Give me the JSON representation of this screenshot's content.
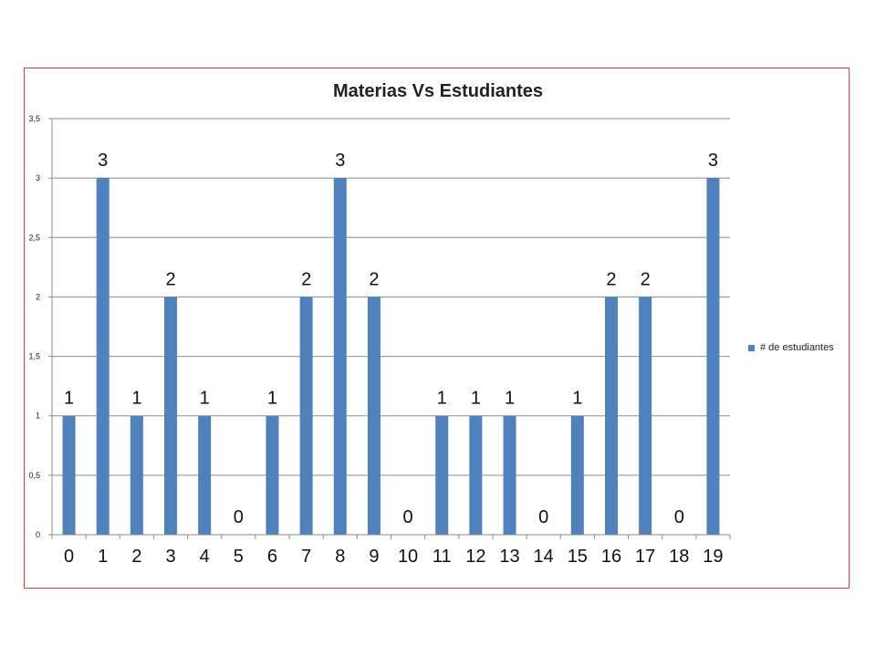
{
  "chart_data": {
    "type": "bar",
    "title": "Materias Vs Estudiantes",
    "xlabel": "",
    "ylabel": "",
    "categories": [
      "0",
      "1",
      "2",
      "3",
      "4",
      "5",
      "6",
      "7",
      "8",
      "9",
      "10",
      "11",
      "12",
      "13",
      "14",
      "15",
      "16",
      "17",
      "18",
      "19"
    ],
    "series": [
      {
        "name": "# de estudiantes",
        "values": [
          1,
          3,
          1,
          2,
          1,
          0,
          1,
          2,
          3,
          2,
          0,
          1,
          1,
          1,
          0,
          1,
          2,
          2,
          0,
          3
        ]
      }
    ],
    "ylim": [
      0,
      3.5
    ],
    "yticks": [
      "0",
      "0,5",
      "1",
      "1,5",
      "2",
      "2,5",
      "3",
      "3,5"
    ],
    "data_labels": [
      "1",
      "3",
      "1",
      "2",
      "1",
      "0",
      "1",
      "2",
      "3",
      "2",
      "0",
      "1",
      "1",
      "1",
      "0",
      "1",
      "2",
      "2",
      "0",
      "3"
    ],
    "grid": true,
    "legend_position": "right",
    "bar_color": "#4f81bd"
  }
}
